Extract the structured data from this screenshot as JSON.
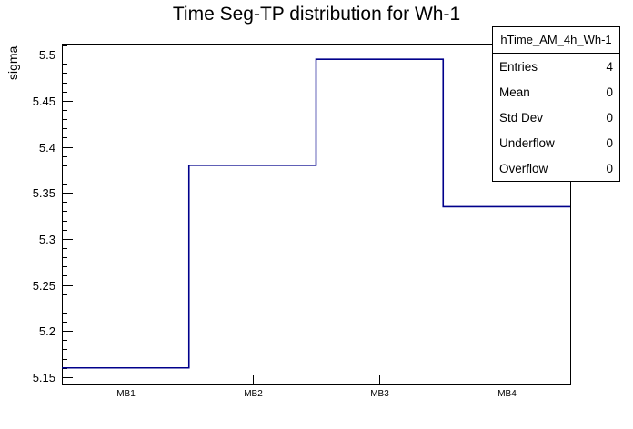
{
  "chart_data": {
    "type": "bar",
    "subtype": "step-histogram-outline",
    "title": "Time Seg-TP distribution for Wh-1",
    "xlabel": "",
    "ylabel": "sigma",
    "categories": [
      "MB1",
      "MB2",
      "MB3",
      "MB4"
    ],
    "values": [
      5.16,
      5.38,
      5.495,
      5.335
    ],
    "ylim": [
      5.142,
      5.512
    ],
    "yticks": [
      {
        "v": 5.15,
        "label": "5.15"
      },
      {
        "v": 5.2,
        "label": "5.2"
      },
      {
        "v": 5.25,
        "label": "5.25"
      },
      {
        "v": 5.3,
        "label": "5.3"
      },
      {
        "v": 5.35,
        "label": "5.35"
      },
      {
        "v": 5.4,
        "label": "5.4"
      },
      {
        "v": 5.45,
        "label": "5.45"
      },
      {
        "v": 5.5,
        "label": "5.5"
      }
    ],
    "y_minor_step": 0.01,
    "grid": false,
    "legend": "none",
    "line_color": "#00008b",
    "axis_color": "#000000",
    "background_color": "#ffffff"
  },
  "stats": {
    "title": "hTime_AM_4h_Wh-1",
    "rows": [
      {
        "label": "Entries",
        "value": "4"
      },
      {
        "label": "Mean",
        "value": "0"
      },
      {
        "label": "Std Dev",
        "value": "0"
      },
      {
        "label": "Underflow",
        "value": "0"
      },
      {
        "label": "Overflow",
        "value": "0"
      }
    ]
  }
}
